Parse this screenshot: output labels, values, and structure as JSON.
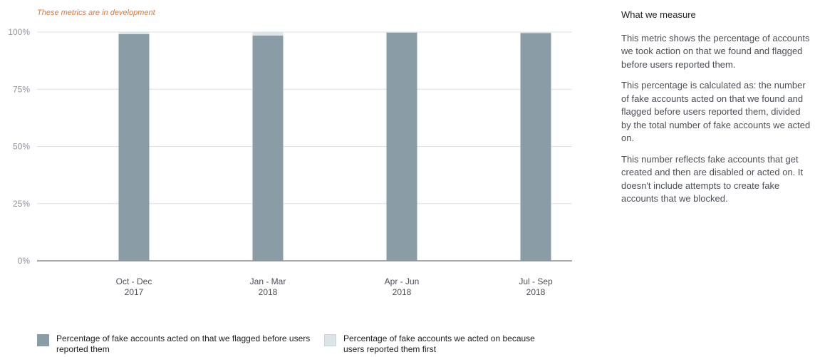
{
  "dev_note": "These metrics are in development",
  "colors": {
    "flagged": "#8a9da6",
    "reported": "#dce4e8",
    "grid": "#dddfe2",
    "axis": "#4b4f56",
    "dev_note": "#e0763a"
  },
  "chart_data": {
    "type": "bar",
    "stacked": true,
    "title": "",
    "xlabel": "",
    "ylabel": "",
    "categories": [
      [
        "Oct - Dec",
        "2017"
      ],
      [
        "Jan - Mar",
        "2018"
      ],
      [
        "Apr - Jun",
        "2018"
      ],
      [
        "Jul - Sep",
        "2018"
      ]
    ],
    "series": [
      {
        "name": "Percentage of fake accounts acted on that we flagged before users reported them",
        "color": "#8a9da6",
        "values": [
          99.1,
          98.5,
          99.8,
          99.6
        ]
      },
      {
        "name": "Percentage of fake accounts we acted on because users reported them first",
        "color": "#dce4e8",
        "values": [
          0.9,
          1.5,
          0.2,
          0.4
        ]
      }
    ],
    "yticks": [
      "0%",
      "25%",
      "50%",
      "75%",
      "100%"
    ],
    "ylim": [
      0,
      100
    ],
    "grid": true,
    "legend_position": "bottom"
  },
  "legend": [
    {
      "label": "Percentage of fake accounts acted on that we flagged before users reported them",
      "color": "#8a9da6"
    },
    {
      "label": "Percentage of fake accounts we acted on because users reported them first",
      "color": "#dce4e8"
    }
  ],
  "sidebar": {
    "title": "What we measure",
    "paragraphs": [
      "This metric shows the percentage of accounts we took action on that we found and flagged before users reported them.",
      "This percentage is calculated as: the number of fake accounts acted on that we found and flagged before users reported them, divided by the total number of fake accounts we acted on.",
      "This number reflects fake accounts that get created and then are disabled or acted on. It doesn't include attempts to create fake accounts that we blocked."
    ]
  }
}
